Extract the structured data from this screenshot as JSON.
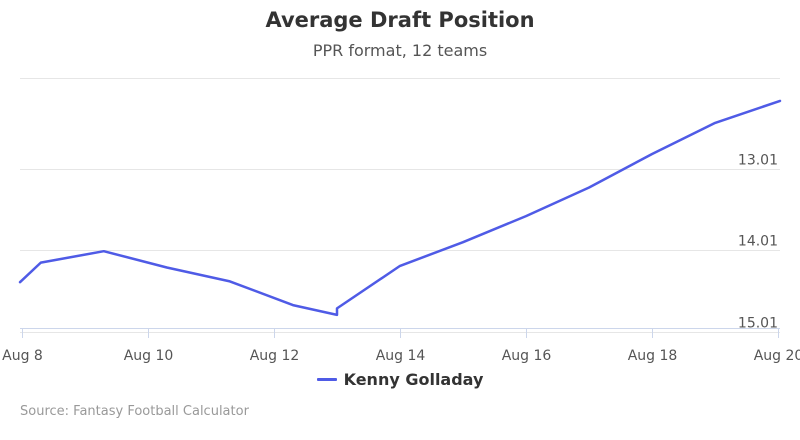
{
  "chart": {
    "title": "Average Draft Position",
    "subtitle": "PPR format, 12 teams",
    "credits": "Source: Fantasy Football Calculator"
  },
  "colors": {
    "series": "#4F5BE6",
    "grid": "#e6e6e6",
    "axis": "#ccd6eb",
    "tick_text": "#555555"
  },
  "chart_data": {
    "type": "line",
    "title": "Average Draft Position",
    "subtitle": "PPR format, 12 teams",
    "xlabel": "",
    "ylabel": "",
    "x_ticks": [
      "Aug 8",
      "Aug 10",
      "Aug 12",
      "Aug 14",
      "Aug 16",
      "Aug 18",
      "Aug 20"
    ],
    "x_tick_values": [
      8,
      10,
      12,
      14,
      16,
      18,
      20
    ],
    "xlim": [
      7.97,
      20.03
    ],
    "y_ticks": [
      "13.01",
      "14.01",
      "15.01"
    ],
    "y_tick_values": [
      13.01,
      14.01,
      15.01
    ],
    "ylim": [
      14.96,
      11.9
    ],
    "y_reversed": true,
    "grid": true,
    "legend_position": "bottom-center",
    "series": [
      {
        "name": "Kenny Golladay",
        "color": "#4F5BE6",
        "x": [
          7.97,
          8.3,
          9.3,
          10.3,
          11.3,
          12.3,
          13.0,
          13.0,
          14.0,
          15.0,
          16.0,
          17.0,
          18.0,
          19.0,
          20.03
        ],
        "y": [
          14.4,
          14.16,
          14.02,
          14.22,
          14.39,
          14.68,
          14.8,
          14.72,
          14.2,
          13.91,
          13.59,
          13.24,
          12.83,
          12.45,
          12.18
        ]
      }
    ]
  }
}
